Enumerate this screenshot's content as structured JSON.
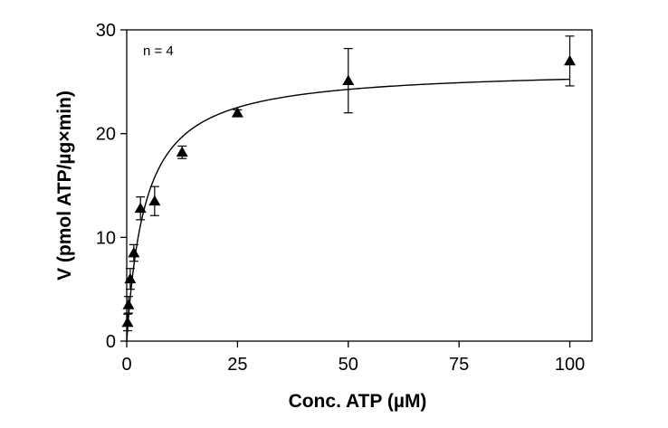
{
  "chart_data": {
    "type": "scatter",
    "xlabel": "Conc. ATP (µM)",
    "ylabel": "V (pmol ATP/µg×min)",
    "annotation": "n = 4",
    "xlim": [
      0,
      105
    ],
    "ylim": [
      0,
      30
    ],
    "x_ticks": [
      0,
      25,
      50,
      75,
      100
    ],
    "y_ticks": [
      0,
      10,
      20,
      30
    ],
    "grid": false,
    "marker": "triangle",
    "series": [
      {
        "points": [
          {
            "x": 0.2,
            "y": 1.8,
            "err": 0.8
          },
          {
            "x": 0.4,
            "y": 3.5,
            "err": 0.8
          },
          {
            "x": 0.8,
            "y": 6.0,
            "err": 1.0
          },
          {
            "x": 1.6,
            "y": 8.5,
            "err": 0.8
          },
          {
            "x": 3.1,
            "y": 12.8,
            "err": 1.1
          },
          {
            "x": 6.3,
            "y": 13.5,
            "err": 1.4
          },
          {
            "x": 12.5,
            "y": 18.2,
            "err": 0.6
          },
          {
            "x": 25,
            "y": 22.0,
            "err": 0.3
          },
          {
            "x": 50,
            "y": 25.1,
            "err": 3.1
          },
          {
            "x": 100,
            "y": 27.0,
            "err": 2.4
          }
        ]
      }
    ],
    "fit": {
      "model": "michaelis-menten",
      "vmax": 26.3,
      "km": 4.2,
      "x_range": [
        0,
        100
      ]
    }
  }
}
